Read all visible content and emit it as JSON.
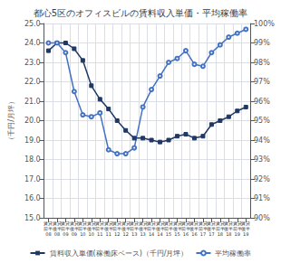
{
  "chart_data": {
    "type": "line",
    "title": "都心5区のオフィスビルの賃料収入単価・平均稼働率",
    "ylabel": "（千円/月坪）",
    "categories": [
      "賃貸\n前半\n08",
      "賃貸\n後半\n08",
      "賃貸\n前半\n09",
      "賃貸\n後半\n09",
      "賃貸\n前半\n10",
      "賃貸\n後半\n10",
      "賃貸\n前半\n11",
      "賃貸\n後半\n11",
      "賃貸\n前半\n12",
      "賃貸\n後半\n12",
      "賃貸\n前半\n13",
      "賃貸\n後半\n13",
      "賃貸\n前半\n14",
      "賃貸\n後半\n14",
      "賃貸\n前半\n15",
      "賃貸\n後半\n15",
      "賃貸\n前半\n16",
      "賃貸\n後半\n16",
      "賃貸\n前半\n17",
      "賃貸\n後半\n17",
      "賃貸\n前半\n18",
      "賃貸\n後半\n18",
      "賃貸\n前半\n19",
      "賃貸\n後半\n19"
    ],
    "series": [
      {
        "name": "賃料収入単価(稼働床ベース)（千円/月坪）",
        "color": "#1f3864",
        "marker": "square",
        "axis": "y",
        "values": [
          23.6,
          24.0,
          24.0,
          23.7,
          23.1,
          21.8,
          21.1,
          20.6,
          20.0,
          19.5,
          19.1,
          19.1,
          19.0,
          18.9,
          19.0,
          19.2,
          19.3,
          19.1,
          19.2,
          19.8,
          20.0,
          20.2,
          20.5,
          20.7
        ]
      },
      {
        "name": "平均稼働率",
        "color": "#4472c4",
        "marker": "circle",
        "axis": "y2",
        "values": [
          99.0,
          99.0,
          98.5,
          96.5,
          95.3,
          95.2,
          95.4,
          93.5,
          93.3,
          93.3,
          93.6,
          95.7,
          96.6,
          97.3,
          98.0,
          98.2,
          98.6,
          97.9,
          97.8,
          98.5,
          98.9,
          99.3,
          99.5,
          99.7
        ]
      }
    ],
    "ylim": [
      15.0,
      25.0
    ],
    "yticks": [
      {
        "value": 15,
        "label": "15.0"
      },
      {
        "value": 16,
        "label": "16.0"
      },
      {
        "value": 17,
        "label": "17.0"
      },
      {
        "value": 18,
        "label": "18.0"
      },
      {
        "value": 19,
        "label": "19.0"
      },
      {
        "value": 20,
        "label": "20.0"
      },
      {
        "value": 21,
        "label": "21.0"
      },
      {
        "value": 22,
        "label": "22.0"
      },
      {
        "value": 23,
        "label": "23.0"
      },
      {
        "value": 24,
        "label": "24.0"
      },
      {
        "value": 25,
        "label": "25.0"
      }
    ],
    "y2lim": [
      90.0,
      100.0
    ],
    "y2ticks": [
      {
        "value": 90,
        "label": "90%"
      },
      {
        "value": 91,
        "label": "91%"
      },
      {
        "value": 92,
        "label": "92%"
      },
      {
        "value": 93,
        "label": "93%"
      },
      {
        "value": 94,
        "label": "94%"
      },
      {
        "value": 95,
        "label": "95%"
      },
      {
        "value": 96,
        "label": "96%"
      },
      {
        "value": 97,
        "label": "97%"
      },
      {
        "value": 98,
        "label": "98%"
      },
      {
        "value": 99,
        "label": "99%"
      },
      {
        "value": 100,
        "label": "100%"
      }
    ],
    "grid": true,
    "legend": "bottom"
  }
}
